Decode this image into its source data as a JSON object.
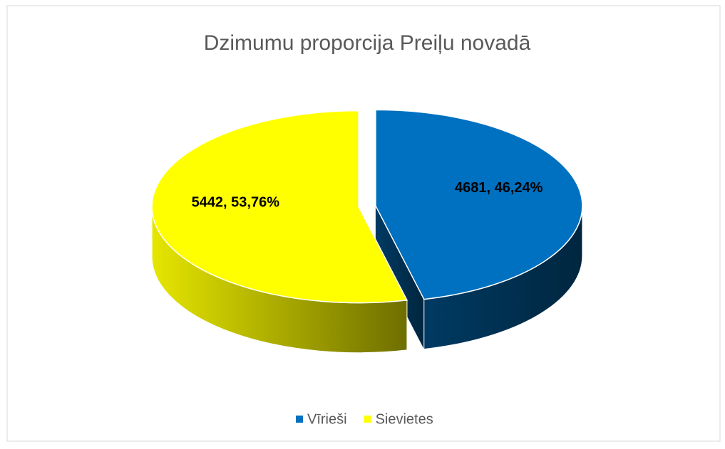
{
  "chart_data": {
    "type": "pie3d",
    "title": "Dzimumu proporcija Preiļu novadā",
    "categories": [
      "Vīrieši",
      "Sievietes"
    ],
    "values": [
      4681,
      5442
    ],
    "value_labels": [
      "4681, 46,24%",
      "5442, 53,76%"
    ],
    "colors": [
      "#0070c0",
      "#ffff00"
    ],
    "legend": "bottom"
  }
}
